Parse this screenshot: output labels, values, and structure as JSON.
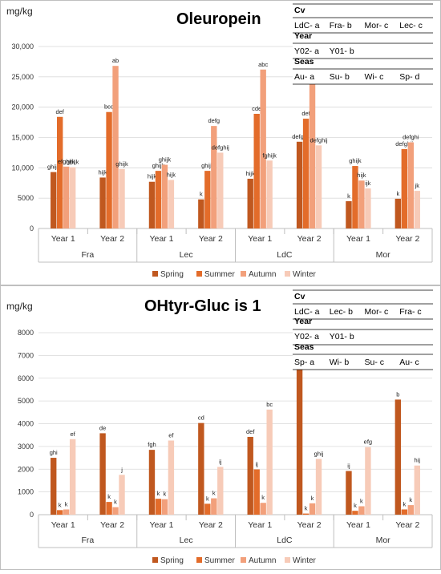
{
  "chart_data": [
    {
      "type": "bar",
      "title": "Oleuropein",
      "ylabel": "mg/kg",
      "ylim": [
        0,
        30000
      ],
      "yticks": [
        0,
        5000,
        10000,
        15000,
        20000,
        25000,
        30000
      ],
      "ytick_labels": [
        "0",
        "5000",
        "10,000",
        "15,000",
        "20,000",
        "25,000",
        "30,000"
      ],
      "grid": true,
      "legend_position": "bottom",
      "groups": [
        "Fra",
        "Lec",
        "LdC",
        "Mor"
      ],
      "categories": [
        "Year 1",
        "Year 2",
        "Year 1",
        "Year 2",
        "Year 1",
        "Year 2",
        "Year 1",
        "Year 2"
      ],
      "series": [
        {
          "name": "Spring",
          "color": "#c0581f",
          "values": [
            9300,
            8400,
            7700,
            4800,
            8200,
            14300,
            4500,
            4900
          ],
          "labels": [
            "ghijk",
            "hijk",
            "hijk",
            "k",
            "hijk",
            "defgh",
            "k",
            "k"
          ]
        },
        {
          "name": "Summer",
          "color": "#e36c2a",
          "values": [
            18400,
            19200,
            9500,
            9500,
            18900,
            18100,
            10300,
            13100
          ],
          "labels": [
            "def",
            "bcd",
            "ghijk",
            "ghijk",
            "cde",
            "def",
            "ghijk",
            "defghij"
          ]
        },
        {
          "name": "Autumn",
          "color": "#f2a07b",
          "values": [
            10200,
            26800,
            10500,
            16900,
            26200,
            27500,
            7900,
            14200
          ],
          "labels": [
            "efghijk",
            "ab",
            "ghijk",
            "defg",
            "abc",
            "a",
            "hijk",
            "defghi"
          ]
        },
        {
          "name": "Winter",
          "color": "#f7cbb8",
          "values": [
            10100,
            9800,
            8000,
            12500,
            11200,
            13700,
            6600,
            6200
          ],
          "labels": [
            "ghijk",
            "ghijk",
            "hijk",
            "defghij",
            "fghijk",
            "defghij",
            "ijk",
            "jk"
          ]
        }
      ],
      "info_table": {
        "rows": [
          {
            "header": "Cv",
            "cells": [
              "LdC- a",
              "Fra- b",
              "Mor- c",
              "Lec- c"
            ]
          },
          {
            "header": "Year",
            "cells": [
              "Y02- a",
              "Y01- b"
            ]
          },
          {
            "header": "Seas",
            "cells": [
              "Au- a",
              "Su- b",
              "Wi- c",
              "Sp- d"
            ]
          }
        ]
      }
    },
    {
      "type": "bar",
      "title": "OHtyr-Gluc is 1",
      "ylabel": "mg/kg",
      "ylim": [
        0,
        8000
      ],
      "yticks": [
        0,
        1000,
        2000,
        3000,
        4000,
        5000,
        6000,
        7000,
        8000
      ],
      "ytick_labels": [
        "0",
        "1000",
        "2000",
        "3000",
        "4000",
        "5000",
        "6000",
        "7000",
        "8000"
      ],
      "grid": true,
      "legend_position": "bottom",
      "groups": [
        "Fra",
        "Lec",
        "LdC",
        "Mor"
      ],
      "categories": [
        "Year 1",
        "Year 2",
        "Year 1",
        "Year 2",
        "Year 1",
        "Year 2",
        "Year 1",
        "Year 2"
      ],
      "series": [
        {
          "name": "Spring",
          "color": "#c0581f",
          "values": [
            2500,
            3580,
            2850,
            4030,
            3420,
            6770,
            1920,
            5060
          ],
          "labels": [
            "ghi",
            "de",
            "fgh",
            "cd",
            "def",
            "a",
            "ij",
            "b"
          ]
        },
        {
          "name": "Summer",
          "color": "#e36c2a",
          "values": [
            200,
            560,
            700,
            480,
            1990,
            50,
            170,
            230
          ],
          "labels": [
            "k",
            "k",
            "k",
            "k",
            "ij",
            "k",
            "k",
            "k"
          ]
        },
        {
          "name": "Autumn",
          "color": "#f2a07b",
          "values": [
            230,
            330,
            680,
            720,
            520,
            500,
            370,
            420
          ],
          "labels": [
            "k",
            "k",
            "k",
            "k",
            "k",
            "k",
            "k",
            "k"
          ]
        },
        {
          "name": "Winter",
          "color": "#f7cbb8",
          "values": [
            3320,
            1750,
            3260,
            2100,
            4620,
            2450,
            2970,
            2160
          ],
          "labels": [
            "ef",
            "j",
            "ef",
            "ij",
            "bc",
            "ghij",
            "efg",
            "hij"
          ]
        }
      ],
      "info_table": {
        "rows": [
          {
            "header": "Cv",
            "cells": [
              "LdC- a",
              "Lec- b",
              "Mor- c",
              "Fra- c"
            ]
          },
          {
            "header": "Year",
            "cells": [
              "Y02- a",
              "Y01- b"
            ]
          },
          {
            "header": "Seas",
            "cells": [
              "Sp- a",
              "Wi- b",
              "Su- c",
              "Au- c"
            ]
          }
        ]
      }
    }
  ]
}
